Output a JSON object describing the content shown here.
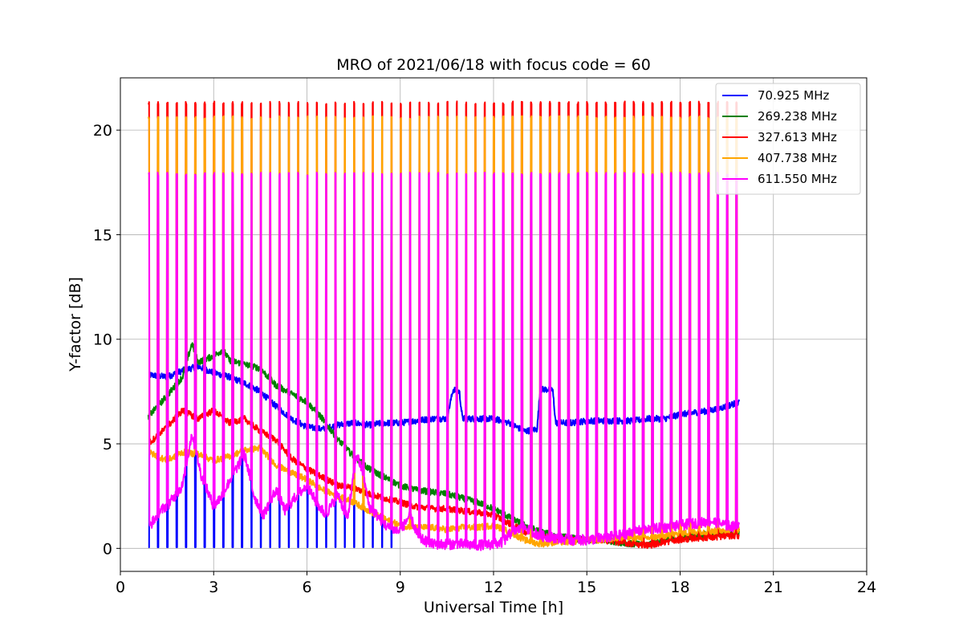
{
  "chart_data": {
    "type": "line",
    "title": "MRO of 2021/06/18 with focus code = 60",
    "xlabel": "Universal Time [h]",
    "ylabel": "Y-factor [dB]",
    "xlim": [
      0,
      24
    ],
    "ylim": [
      -1.1,
      22.5
    ],
    "xticks": [
      0,
      3,
      6,
      9,
      12,
      15,
      18,
      21,
      24
    ],
    "yticks": [
      0,
      5,
      10,
      15,
      20
    ],
    "grid": true,
    "legend_position": "upper right",
    "pulse_period_h": 0.3,
    "series": [
      {
        "name": "70.925 MHz",
        "color": "#0000ff",
        "x": [
          0.9,
          1.5,
          2.0,
          2.5,
          3.0,
          3.5,
          4.0,
          4.5,
          5.0,
          5.5,
          6.0,
          6.5,
          7.0,
          7.5,
          8.0,
          8.5,
          9.0,
          9.5,
          10.0,
          10.5,
          10.7,
          10.9,
          11.0,
          11.5,
          12.0,
          12.5,
          13.0,
          13.4,
          13.5,
          13.9,
          14.0,
          14.5,
          15.0,
          15.5,
          16.0,
          16.5,
          17.0,
          17.5,
          18.0,
          18.5,
          19.0,
          19.5,
          19.9
        ],
        "y": [
          8.3,
          8.2,
          8.5,
          8.7,
          8.4,
          8.2,
          7.9,
          7.5,
          6.8,
          6.2,
          5.8,
          5.7,
          5.9,
          6.0,
          5.9,
          6.0,
          6.0,
          6.1,
          6.2,
          6.2,
          7.6,
          7.5,
          6.2,
          6.2,
          6.2,
          6.0,
          5.6,
          5.7,
          7.6,
          7.6,
          6.0,
          6.0,
          6.1,
          6.1,
          6.1,
          6.1,
          6.2,
          6.2,
          6.4,
          6.5,
          6.6,
          6.8,
          7.0
        ],
        "pulse_min": 0.05,
        "pulse_max": null,
        "pulse_end_h": 9.0
      },
      {
        "name": "269.238 MHz",
        "color": "#008000",
        "x": [
          0.9,
          1.5,
          2.0,
          2.3,
          2.5,
          3.0,
          3.3,
          3.5,
          4.0,
          4.5,
          5.0,
          5.5,
          6.0,
          6.5,
          7.0,
          7.5,
          8.0,
          8.5,
          9.0,
          9.5,
          10.0,
          10.5,
          11.0,
          11.5,
          12.0,
          12.5,
          13.0,
          13.5,
          14.0,
          14.5,
          15.0,
          15.5,
          16.0,
          16.5,
          17.0,
          17.5,
          18.0,
          18.5,
          19.0,
          19.5,
          19.9
        ],
        "y": [
          6.3,
          7.3,
          8.2,
          9.8,
          8.9,
          9.2,
          9.5,
          9.0,
          8.8,
          8.6,
          7.8,
          7.4,
          7.0,
          6.2,
          5.2,
          4.4,
          3.8,
          3.4,
          3.0,
          2.8,
          2.7,
          2.6,
          2.4,
          2.2,
          1.9,
          1.5,
          1.1,
          0.8,
          0.6,
          0.5,
          0.4,
          0.4,
          0.3,
          0.2,
          0.2,
          0.4,
          0.5,
          0.6,
          0.7,
          0.7,
          0.8
        ],
        "pulse_min": null,
        "pulse_max": null
      },
      {
        "name": "327.613 MHz",
        "color": "#ff0000",
        "x": [
          0.9,
          1.5,
          2.0,
          2.5,
          3.0,
          3.5,
          4.0,
          4.5,
          5.0,
          5.5,
          6.0,
          6.5,
          7.0,
          7.5,
          8.0,
          8.5,
          9.0,
          9.5,
          10.0,
          10.5,
          11.0,
          11.5,
          12.0,
          12.5,
          13.0,
          13.5,
          14.0,
          14.5,
          15.0,
          15.5,
          16.0,
          16.5,
          17.0,
          17.5,
          18.0,
          18.5,
          19.0,
          19.5,
          19.9
        ],
        "y": [
          5.0,
          5.8,
          6.6,
          6.2,
          6.6,
          6.0,
          6.2,
          5.6,
          5.2,
          4.3,
          3.8,
          3.4,
          3.0,
          2.9,
          2.6,
          2.4,
          2.2,
          2.0,
          1.9,
          1.9,
          1.8,
          1.7,
          1.6,
          1.2,
          0.8,
          0.6,
          0.5,
          0.4,
          0.4,
          0.4,
          0.3,
          0.2,
          0.15,
          0.3,
          0.4,
          0.5,
          0.5,
          0.6,
          0.6
        ],
        "pulse_min": null,
        "pulse_max": 21.3
      },
      {
        "name": "407.738 MHz",
        "color": "#ffa500",
        "x": [
          0.9,
          1.5,
          2.0,
          2.5,
          3.0,
          3.5,
          4.0,
          4.5,
          5.0,
          5.5,
          6.0,
          6.5,
          7.0,
          7.5,
          8.0,
          8.5,
          9.0,
          9.5,
          10.0,
          10.5,
          11.0,
          11.5,
          12.0,
          12.5,
          13.0,
          13.5,
          14.0,
          14.5,
          15.0,
          15.5,
          16.0,
          16.5,
          17.0,
          17.5,
          18.0,
          18.5,
          19.0,
          19.5,
          19.9
        ],
        "y": [
          4.6,
          4.2,
          4.6,
          4.5,
          4.2,
          4.4,
          4.7,
          4.8,
          4.0,
          3.6,
          3.3,
          2.8,
          2.5,
          2.2,
          1.8,
          1.4,
          1.1,
          1.0,
          1.0,
          0.9,
          1.0,
          1.0,
          1.1,
          0.8,
          0.4,
          0.2,
          0.3,
          0.3,
          0.4,
          0.4,
          0.5,
          0.5,
          0.5,
          0.6,
          0.7,
          0.8,
          0.8,
          0.9,
          0.9
        ],
        "pulse_min": null,
        "pulse_max": 20.6
      },
      {
        "name": "611.550 MHz",
        "color": "#ff00ff",
        "x": [
          0.9,
          1.3,
          1.6,
          2.0,
          2.3,
          2.6,
          3.0,
          3.3,
          3.6,
          4.0,
          4.3,
          4.6,
          5.0,
          5.3,
          5.6,
          6.0,
          6.3,
          6.6,
          7.0,
          7.3,
          7.6,
          7.8,
          8.0,
          8.3,
          8.6,
          9.0,
          9.3,
          9.6,
          10.0,
          10.5,
          11.0,
          11.5,
          12.0,
          12.3,
          12.6,
          13.0,
          13.5,
          14.0,
          14.5,
          15.0,
          15.5,
          16.0,
          16.5,
          17.0,
          17.5,
          18.0,
          18.5,
          19.0,
          19.5,
          19.9
        ],
        "y": [
          1.0,
          1.8,
          2.2,
          3.0,
          5.5,
          3.5,
          2.0,
          2.6,
          3.5,
          4.5,
          2.5,
          1.6,
          2.8,
          1.8,
          2.4,
          3.0,
          2.2,
          1.6,
          2.6,
          1.4,
          4.5,
          3.6,
          2.0,
          1.5,
          1.0,
          0.8,
          1.6,
          0.5,
          0.2,
          0.2,
          0.2,
          0.15,
          0.2,
          0.3,
          0.8,
          1.0,
          0.6,
          0.5,
          0.4,
          0.4,
          0.5,
          0.6,
          0.8,
          0.9,
          1.0,
          1.1,
          1.2,
          1.3,
          1.1,
          1.0
        ],
        "pulse_min": null,
        "pulse_max": 17.9
      }
    ]
  }
}
